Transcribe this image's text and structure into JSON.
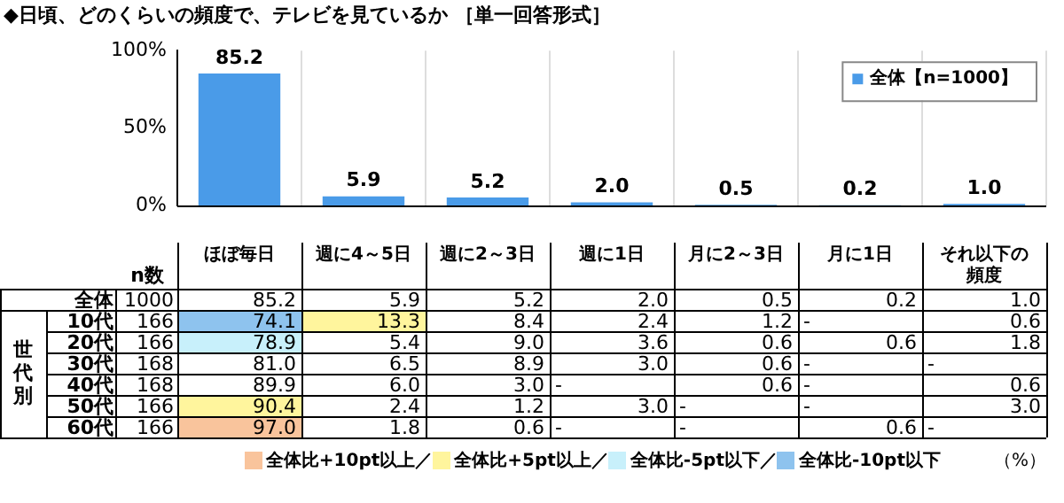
{
  "chart_data": [
    {
      "type": "bar",
      "title": "◆日頃、どのくらいの頻度で、テレビを見ているか ［単一回答形式］",
      "categories": [
        null,
        null,
        null,
        null,
        null,
        null,
        null
      ],
      "series": [
        {
          "name": "全体【n=1000】",
          "color": "#4a9be8",
          "values": [
            85.2,
            5.9,
            5.2,
            2.0,
            0.5,
            0.2,
            1.0
          ],
          "value_labels": [
            "85.2",
            "5.9",
            "5.2",
            "2.0",
            "0.5",
            "0.2",
            "1.0"
          ]
        }
      ],
      "ylim": [
        0,
        100
      ],
      "yticks": [
        {
          "value": 0,
          "label": "0%"
        },
        {
          "value": 50,
          "label": "50%"
        },
        {
          "value": 100,
          "label": "100%"
        }
      ],
      "grid": "x",
      "legend": "top right"
    },
    {
      "type": "heatmap",
      "categories": [
        "ほぼ毎日",
        "週に4～5日",
        "週に2～3日",
        "週に1日",
        "月に2～3日",
        "月に1日",
        "それ以下の頻度"
      ],
      "y_categories": [
        "全体",
        "10代",
        "20代",
        "30代",
        "40代",
        "50代",
        "60代"
      ],
      "y2_categories": [
        "1000",
        "166",
        "166",
        "168",
        "168",
        "166",
        "166"
      ],
      "y2label": "n数",
      "ylabel": "世代別",
      "cells": [
        [
          85.2,
          5.9,
          5.2,
          2.0,
          0.5,
          0.2,
          1.0
        ],
        [
          74.1,
          13.3,
          8.4,
          2.4,
          1.2,
          null,
          0.6
        ],
        [
          78.9,
          5.4,
          9.0,
          3.6,
          0.6,
          0.6,
          1.8
        ],
        [
          81.0,
          6.5,
          8.9,
          3.0,
          0.6,
          null,
          null
        ],
        [
          89.9,
          6.0,
          3.0,
          null,
          0.6,
          null,
          0.6
        ],
        [
          90.4,
          2.4,
          1.2,
          3.0,
          null,
          null,
          3.0
        ],
        [
          97.0,
          1.8,
          0.6,
          null,
          null,
          0.6,
          null
        ]
      ],
      "cell_labels": [
        [
          "85.2",
          "5.9",
          "5.2",
          "2.0",
          "0.5",
          "0.2",
          "1.0"
        ],
        [
          "74.1",
          "13.3",
          "8.4",
          "2.4",
          "1.2",
          "-",
          "0.6"
        ],
        [
          "78.9",
          "5.4",
          "9.0",
          "3.6",
          "0.6",
          "0.6",
          "1.8"
        ],
        [
          "81.0",
          "6.5",
          "8.9",
          "3.0",
          "0.6",
          "-",
          "-"
        ],
        [
          "89.9",
          "6.0",
          "3.0",
          "-",
          "0.6",
          "-",
          "0.6"
        ],
        [
          "90.4",
          "2.4",
          "1.2",
          "3.0",
          "-",
          "-",
          "3.0"
        ],
        [
          "97.0",
          "1.8",
          "0.6",
          "-",
          "-",
          "0.6",
          "-"
        ]
      ],
      "annotations": [
        "全体比+10pt以上／",
        "全体比+5pt以上／",
        "全体比-5pt以下／",
        "全体比-10pt以下",
        "（%）"
      ]
    }
  ]
}
